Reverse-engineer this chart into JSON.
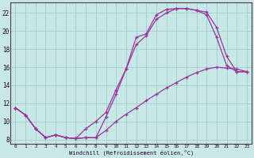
{
  "xlabel": "Windchill (Refroidissement éolien,°C)",
  "bg_color": "#c8e8e8",
  "grid_color": "#a8d0d0",
  "line_color": "#993399",
  "xlim_min": -0.5,
  "xlim_max": 23.5,
  "ylim_min": 7.5,
  "ylim_max": 23.2,
  "xticks": [
    0,
    1,
    2,
    3,
    4,
    5,
    6,
    7,
    8,
    9,
    10,
    11,
    12,
    13,
    14,
    15,
    16,
    17,
    18,
    19,
    20,
    21,
    22,
    23
  ],
  "yticks": [
    8,
    10,
    12,
    14,
    16,
    18,
    20,
    22
  ],
  "line1_x": [
    0,
    1,
    2,
    3,
    4,
    5,
    6,
    7,
    8,
    9,
    10,
    11,
    12,
    13,
    14,
    15,
    16,
    17,
    18,
    19,
    20,
    21,
    22,
    23
  ],
  "line1_y": [
    11.5,
    10.7,
    9.2,
    8.2,
    8.5,
    8.2,
    8.1,
    8.2,
    8.2,
    10.5,
    13.0,
    15.8,
    19.3,
    19.7,
    21.8,
    22.4,
    22.5,
    22.5,
    22.3,
    22.1,
    20.4,
    17.2,
    15.5,
    15.5
  ],
  "line2_x": [
    0,
    1,
    2,
    3,
    4,
    5,
    6,
    7,
    8,
    9,
    10,
    11,
    12,
    13,
    14,
    15,
    16,
    17,
    18,
    19,
    20,
    21,
    22,
    23
  ],
  "line2_y": [
    11.5,
    10.7,
    9.2,
    8.2,
    8.5,
    8.2,
    8.1,
    9.2,
    10.0,
    11.0,
    13.5,
    15.8,
    18.5,
    19.5,
    21.3,
    22.0,
    22.5,
    22.5,
    22.3,
    21.8,
    19.3,
    16.2,
    15.5,
    15.5
  ],
  "line3_x": [
    0,
    1,
    2,
    3,
    4,
    5,
    6,
    7,
    8,
    9,
    10,
    11,
    12,
    13,
    14,
    15,
    16,
    17,
    18,
    19,
    20,
    21,
    22,
    23
  ],
  "line3_y": [
    11.5,
    10.7,
    9.2,
    8.2,
    8.5,
    8.2,
    8.1,
    8.2,
    8.2,
    9.0,
    10.0,
    10.8,
    11.5,
    12.3,
    13.0,
    13.7,
    14.3,
    14.9,
    15.4,
    15.8,
    16.0,
    15.9,
    15.8,
    15.5
  ]
}
